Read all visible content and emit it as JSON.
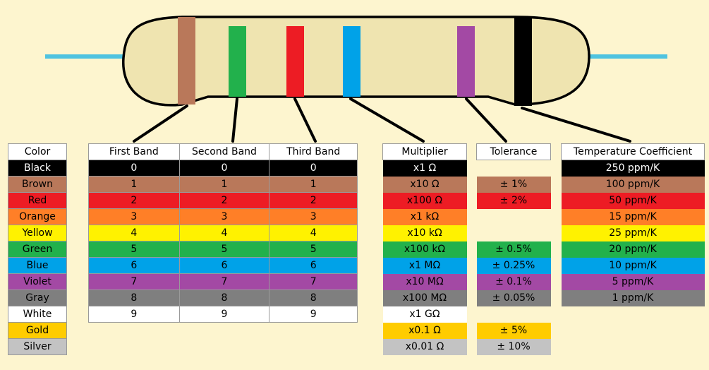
{
  "colors": {
    "Black": "#000000",
    "Brown": "#b9785a",
    "Red": "#ed1c24",
    "Orange": "#ff7f27",
    "Yellow": "#fff200",
    "Green": "#22b14c",
    "Blue": "#00a2e8",
    "Violet": "#a349a4",
    "Gray": "#7f7f7f",
    "White": "#ffffff",
    "Gold": "#ffcc00",
    "Silver": "#c3c3c3",
    "background": "#fdf5cf",
    "resistor_body": "#efe4b0",
    "lead": "#4fc3e0"
  },
  "resistor_bands": [
    "Brown",
    "Green",
    "Red",
    "Blue",
    "Violet",
    "Black"
  ],
  "color_table": {
    "header": "Color",
    "rows": [
      {
        "label": "Black",
        "color": "Black"
      },
      {
        "label": "Brown",
        "color": "Brown"
      },
      {
        "label": "Red",
        "color": "Red"
      },
      {
        "label": "Orange",
        "color": "Orange"
      },
      {
        "label": "Yellow",
        "color": "Yellow"
      },
      {
        "label": "Green",
        "color": "Green"
      },
      {
        "label": "Blue",
        "color": "Blue"
      },
      {
        "label": "Violet",
        "color": "Violet"
      },
      {
        "label": "Gray",
        "color": "Gray"
      },
      {
        "label": "White",
        "color": "White"
      },
      {
        "label": "Gold",
        "color": "Gold"
      },
      {
        "label": "Silver",
        "color": "Silver"
      }
    ]
  },
  "digit_table": {
    "headers": [
      "First Band",
      "Second Band",
      "Third Band"
    ],
    "rows": [
      {
        "color": "Black",
        "values": [
          "0",
          "0",
          "0"
        ]
      },
      {
        "color": "Brown",
        "values": [
          "1",
          "1",
          "1"
        ]
      },
      {
        "color": "Red",
        "values": [
          "2",
          "2",
          "2"
        ]
      },
      {
        "color": "Orange",
        "values": [
          "3",
          "3",
          "3"
        ]
      },
      {
        "color": "Yellow",
        "values": [
          "4",
          "4",
          "4"
        ]
      },
      {
        "color": "Green",
        "values": [
          "5",
          "5",
          "5"
        ]
      },
      {
        "color": "Blue",
        "values": [
          "6",
          "6",
          "6"
        ]
      },
      {
        "color": "Violet",
        "values": [
          "7",
          "7",
          "7"
        ]
      },
      {
        "color": "Gray",
        "values": [
          "8",
          "8",
          "8"
        ]
      },
      {
        "color": "White",
        "values": [
          "9",
          "9",
          "9"
        ]
      }
    ]
  },
  "multiplier_table": {
    "header": "Multiplier",
    "rows": [
      {
        "color": "Black",
        "value": "x1 Ω"
      },
      {
        "color": "Brown",
        "value": "x10 Ω"
      },
      {
        "color": "Red",
        "value": "x100 Ω"
      },
      {
        "color": "Orange",
        "value": "x1 kΩ"
      },
      {
        "color": "Yellow",
        "value": "x10 kΩ"
      },
      {
        "color": "Green",
        "value": "x100 kΩ"
      },
      {
        "color": "Blue",
        "value": "x1 MΩ"
      },
      {
        "color": "Violet",
        "value": "x10 MΩ"
      },
      {
        "color": "Gray",
        "value": "x100 MΩ"
      },
      {
        "color": "White",
        "value": "x1 GΩ"
      },
      {
        "color": "Gold",
        "value": "x0.1 Ω"
      },
      {
        "color": "Silver",
        "value": "x0.01 Ω"
      }
    ]
  },
  "tolerance_table": {
    "header": "Tolerance",
    "rows": [
      {
        "color": null,
        "value": ""
      },
      {
        "color": "Brown",
        "value": "± 1%"
      },
      {
        "color": "Red",
        "value": "± 2%"
      },
      {
        "color": null,
        "value": ""
      },
      {
        "color": null,
        "value": ""
      },
      {
        "color": "Green",
        "value": "± 0.5%"
      },
      {
        "color": "Blue",
        "value": "± 0.25%"
      },
      {
        "color": "Violet",
        "value": "± 0.1%"
      },
      {
        "color": "Gray",
        "value": "± 0.05%"
      },
      {
        "color": null,
        "value": ""
      },
      {
        "color": "Gold",
        "value": "± 5%"
      },
      {
        "color": "Silver",
        "value": "± 10%"
      }
    ]
  },
  "temperature_table": {
    "header": "Temperature Coefficient",
    "rows": [
      {
        "color": "Black",
        "value": "250 ppm/K"
      },
      {
        "color": "Brown",
        "value": "100 ppm/K"
      },
      {
        "color": "Red",
        "value": "50 ppm/K"
      },
      {
        "color": "Orange",
        "value": "15 ppm/K"
      },
      {
        "color": "Yellow",
        "value": "25 ppm/K"
      },
      {
        "color": "Green",
        "value": "20 ppm/K"
      },
      {
        "color": "Blue",
        "value": "10 ppm/K"
      },
      {
        "color": "Violet",
        "value": "5 ppm/K"
      },
      {
        "color": "Gray",
        "value": "1 ppm/K"
      }
    ]
  }
}
